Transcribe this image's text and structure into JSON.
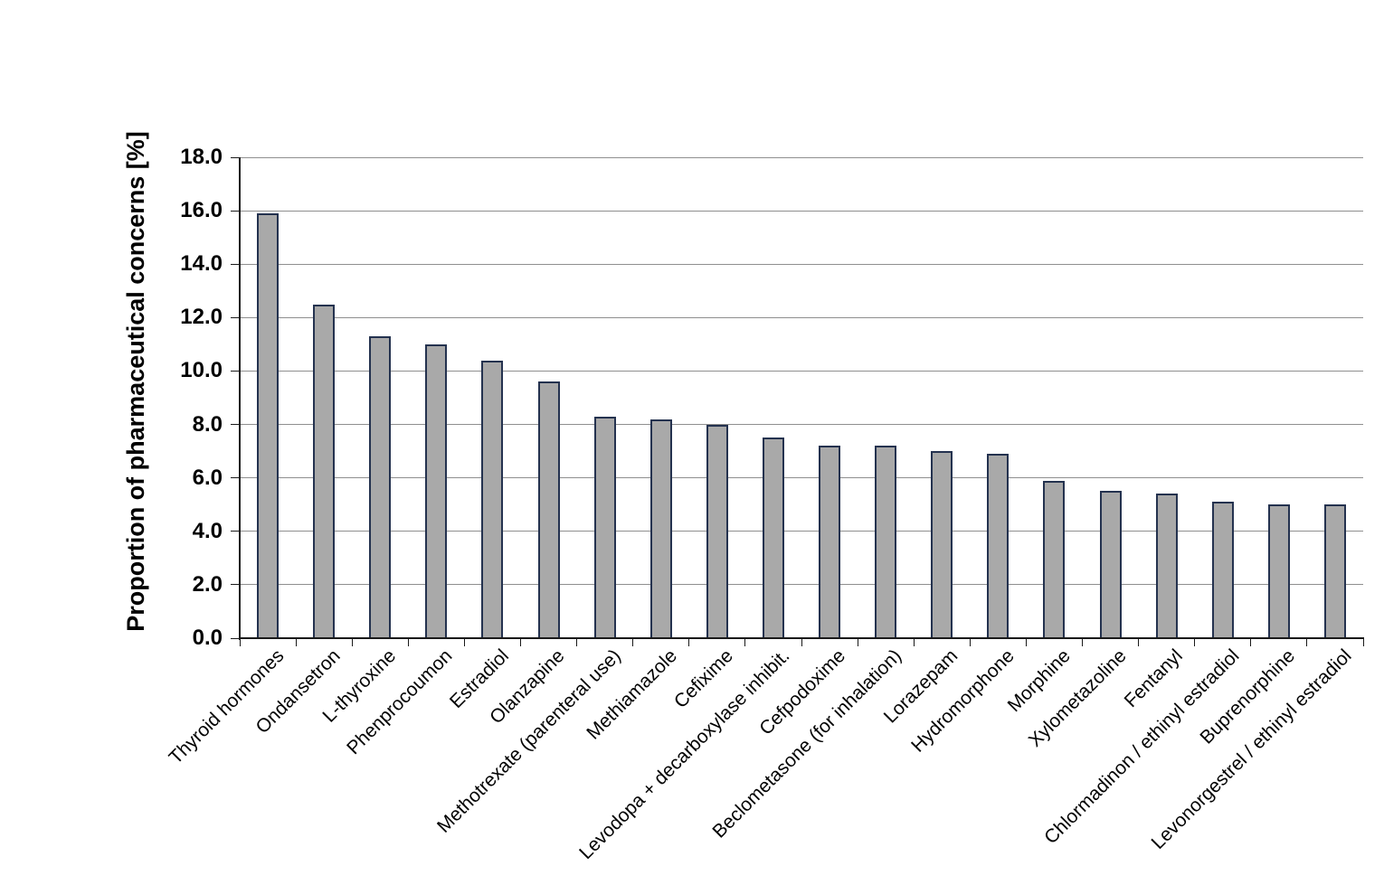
{
  "chart_data": {
    "type": "bar",
    "ylabel": "Proportion of pharmaceutical concerns [%]",
    "categories": [
      "Thyroid hormones",
      "Ondansetron",
      "L-thyroxine",
      "Phenprocoumon",
      "Estradiol",
      "Olanzapine",
      "Methotrexate (parenteral use)",
      "Methiamazole",
      "Cefixime",
      "Levodopa + decarboxylase inhibit.",
      "Cefpodoxime",
      "Beclometasone (for inhalation)",
      "Lorazepam",
      "Hydromorphone",
      "Morphine",
      "Xylometazoline",
      "Fentanyl",
      "Chlormadinon / ethinyl estradiol",
      "Buprenorphine",
      "Levonorgestrel / ethinyl estradiol"
    ],
    "values": [
      15.9,
      12.5,
      11.3,
      11.0,
      10.4,
      9.6,
      8.3,
      8.2,
      8.0,
      7.5,
      7.2,
      7.2,
      7.0,
      6.9,
      5.9,
      5.5,
      5.4,
      5.1,
      5.0,
      5.0
    ],
    "ylim": [
      0,
      18
    ],
    "y_tick_step": 2,
    "y_tick_labels": [
      "0.0",
      "2.0",
      "4.0",
      "6.0",
      "8.0",
      "10.0",
      "12.0",
      "14.0",
      "16.0",
      "18.0"
    ],
    "grid": true,
    "legend": "none",
    "bar_fill_color": "#a9a9a9",
    "bar_border_color": "#24324f",
    "gridline_color": "#8f8f8f",
    "axis_color": "#1a1a1a",
    "background_color": "#ffffff"
  }
}
